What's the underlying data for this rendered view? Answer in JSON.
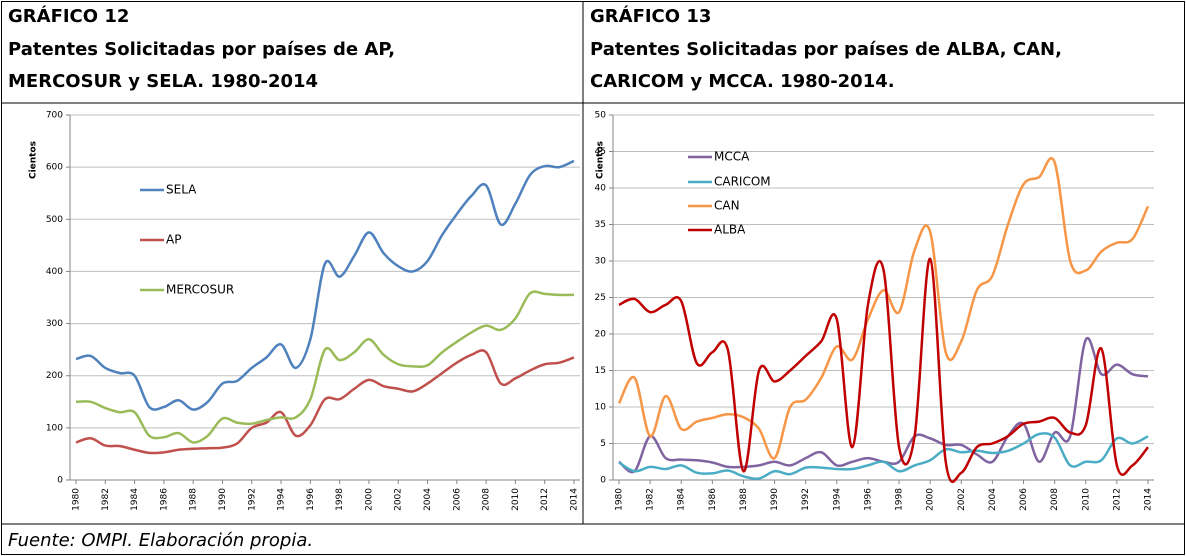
{
  "chart_data": [
    {
      "type": "line",
      "label": "GRÁFICO 12",
      "title": [
        "Patentes Solicitadas por países de AP,",
        "MERCOSUR y SELA. 1980-2014"
      ],
      "ylabel": "Cientos",
      "x": [
        1980,
        1981,
        1982,
        1983,
        1984,
        1985,
        1986,
        1987,
        1988,
        1989,
        1990,
        1991,
        1992,
        1993,
        1994,
        1995,
        1996,
        1997,
        1998,
        1999,
        2000,
        2001,
        2002,
        2003,
        2004,
        2005,
        2006,
        2007,
        2008,
        2009,
        2010,
        2011,
        2012,
        2013,
        2014
      ],
      "xlim": [
        1980,
        2014
      ],
      "xticks": [
        1980,
        1982,
        1984,
        1986,
        1988,
        1990,
        1992,
        1994,
        1996,
        1998,
        2000,
        2002,
        2004,
        2006,
        2008,
        2010,
        2012,
        2014
      ],
      "ylim": [
        0,
        700
      ],
      "yticks": [
        0,
        100,
        200,
        300,
        400,
        500,
        600,
        700
      ],
      "grid": true,
      "series": [
        {
          "name": "SELA",
          "color": "#4f81bd",
          "values": [
            232,
            238,
            215,
            205,
            200,
            140,
            140,
            153,
            135,
            150,
            185,
            190,
            215,
            235,
            260,
            215,
            270,
            415,
            390,
            430,
            475,
            435,
            410,
            400,
            420,
            470,
            510,
            545,
            565,
            490,
            530,
            585,
            602,
            600,
            612
          ]
        },
        {
          "name": "AP",
          "color": "#c0504d",
          "values": [
            72,
            80,
            66,
            65,
            58,
            52,
            53,
            58,
            60,
            61,
            62,
            70,
            100,
            110,
            130,
            85,
            105,
            155,
            155,
            175,
            192,
            180,
            175,
            170,
            185,
            205,
            225,
            240,
            245,
            185,
            195,
            210,
            222,
            225,
            235
          ]
        },
        {
          "name": "MERCOSUR",
          "color": "#9bbb59",
          "values": [
            150,
            150,
            138,
            130,
            130,
            85,
            82,
            90,
            72,
            85,
            118,
            110,
            108,
            115,
            120,
            120,
            155,
            250,
            230,
            245,
            270,
            240,
            222,
            218,
            220,
            245,
            265,
            283,
            296,
            288,
            310,
            358,
            357,
            355,
            355
          ]
        }
      ]
    },
    {
      "type": "line",
      "label": "GRÁFICO 13",
      "title": [
        "Patentes Solicitadas por países de ALBA, CAN,",
        "CARICOM y MCCA. 1980-2014."
      ],
      "ylabel": "Cientos",
      "x": [
        1980,
        1981,
        1982,
        1983,
        1984,
        1985,
        1986,
        1987,
        1988,
        1989,
        1990,
        1991,
        1992,
        1993,
        1994,
        1995,
        1996,
        1997,
        1998,
        1999,
        2000,
        2001,
        2002,
        2003,
        2004,
        2005,
        2006,
        2007,
        2008,
        2009,
        2010,
        2011,
        2012,
        2013,
        2014
      ],
      "xlim": [
        1980,
        2014
      ],
      "xticks": [
        1980,
        1982,
        1984,
        1986,
        1988,
        1990,
        1992,
        1994,
        1996,
        1998,
        2000,
        2002,
        2004,
        2006,
        2008,
        2010,
        2012,
        2014
      ],
      "ylim": [
        0,
        50
      ],
      "yticks": [
        0,
        5,
        10,
        15,
        20,
        25,
        30,
        35,
        40,
        45,
        50
      ],
      "grid": true,
      "series": [
        {
          "name": "MCCA",
          "color": "#8064a2",
          "values": [
            2.5,
            1.2,
            6,
            3,
            2.8,
            2.7,
            2.4,
            1.8,
            1.8,
            2,
            2.5,
            2,
            3,
            3.8,
            2,
            2.5,
            3,
            2.5,
            2.5,
            6,
            5.7,
            4.8,
            4.8,
            3.5,
            2.5,
            6,
            7.7,
            2.5,
            6.5,
            6,
            19.2,
            14.5,
            15.8,
            14.5,
            14.2
          ]
        },
        {
          "name": "CARICOM",
          "color": "#4bacc6",
          "values": [
            2.4,
            1.2,
            1.8,
            1.5,
            2,
            1,
            0.9,
            1.3,
            0.5,
            0.2,
            1.2,
            0.8,
            1.7,
            1.7,
            1.5,
            1.5,
            2,
            2.5,
            1.2,
            2,
            2.7,
            4.2,
            3.8,
            4,
            3.7,
            4,
            5,
            6.3,
            5.8,
            2,
            2.5,
            2.7,
            5.7,
            5,
            6
          ]
        },
        {
          "name": "CAN",
          "color": "#f79646",
          "values": [
            10.5,
            14,
            6,
            11.5,
            7,
            8,
            8.5,
            9,
            8.6,
            7,
            3,
            10,
            11,
            14,
            18.3,
            16.5,
            22,
            26,
            23,
            31.5,
            34,
            17.5,
            19,
            26,
            28,
            35,
            40.5,
            41.5,
            43.5,
            30,
            28.7,
            31.3,
            32.5,
            33,
            37.5
          ]
        },
        {
          "name": "ALBA",
          "color": "#c00000",
          "values": [
            24,
            24.8,
            23,
            24,
            24.5,
            16,
            17.5,
            17.8,
            1.2,
            15,
            13.5,
            15,
            17,
            19,
            22,
            4.5,
            24,
            28.8,
            4.5,
            6,
            30.3,
            2.5,
            1,
            4.5,
            5,
            6,
            7.7,
            8,
            8.5,
            6.5,
            7.5,
            18,
            2,
            2,
            4.5
          ]
        }
      ]
    }
  ],
  "source": "Fuente: OMPI. Elaboración propia."
}
